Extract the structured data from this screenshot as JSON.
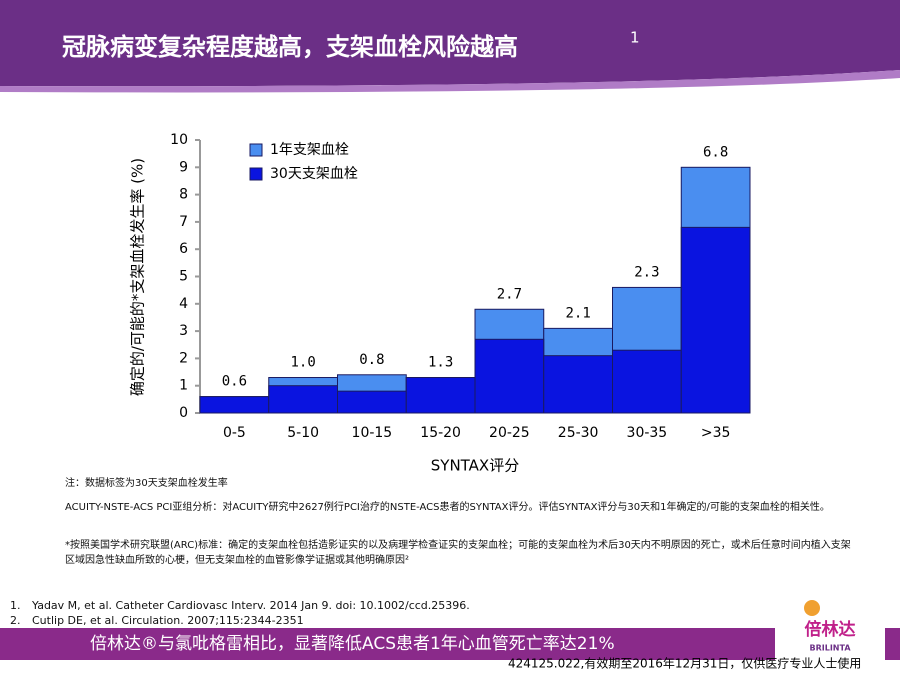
{
  "slide": {
    "title": "冠脉病变复杂程度越高，支架血栓风险越高",
    "title_sup": "1",
    "note": "注：数据标签为30天支架血栓发生率",
    "analysis": "ACUITY-NSTE-ACS PCI亚组分析：对ACUITY研究中2627例行PCI治疗的NSTE-ACS患者的SYNTAX评分。评估SYNTAX评分与30天和1年确定的/可能的支架血栓的相关性。",
    "definition": "*按照美国学术研究联盟(ARC)标准：确定的支架血栓包括造影证实的以及病理学检查证实的支架血栓；可能的支架血栓为术后30天内不明原因的死亡，或术后任意时间内植入支架区域因急性缺血所致的心梗，但无支架血栓的血管影像学证据或其他明确原因²",
    "references": [
      "Yadav M, et al. Catheter Cardiovasc Interv.  2014 Jan 9. doi: 10.1002/ccd.25396.",
      "Cutlip DE, et al. Circulation. 2007;115:2344-2351"
    ],
    "reference_numbers": [
      "1.",
      "2."
    ],
    "banner": "倍林达®与氯吡格雷相比，显著降低ACS患者1年心血管死亡率达21%",
    "logo": "倍林达",
    "logo_sub": "BRILINTA",
    "footer": "424125.022,有效期至2016年12月31日，仅供医疗专业人士使用"
  },
  "chart_data": {
    "type": "overlay_bar",
    "x_label": "SYNTAX评分",
    "y_label": "确定的/可能的*支架血栓发生率 (%)",
    "categories": [
      "0-5",
      "5-10",
      "10-15",
      "15-20",
      "20-25",
      "25-30",
      "30-35",
      ">35"
    ],
    "series": [
      {
        "name": "1年支架血栓",
        "color": "#4a8ef0",
        "values": [
          0.6,
          1.3,
          1.4,
          1.3,
          3.8,
          3.1,
          4.6,
          9.0
        ]
      },
      {
        "name": "30天支架血栓",
        "color": "#0a14e0",
        "values": [
          0.6,
          1.0,
          0.8,
          1.3,
          2.7,
          2.1,
          2.3,
          6.8
        ],
        "value_labels": [
          "0.6",
          "1.0",
          "0.8",
          "1.3",
          "2.7",
          "2.1",
          "2.3",
          "6.8"
        ]
      }
    ],
    "ylim": [
      0,
      10
    ],
    "yticks": [
      0,
      1,
      2,
      3,
      4,
      5,
      6,
      7,
      8,
      9,
      10
    ],
    "legend": "top-left"
  }
}
